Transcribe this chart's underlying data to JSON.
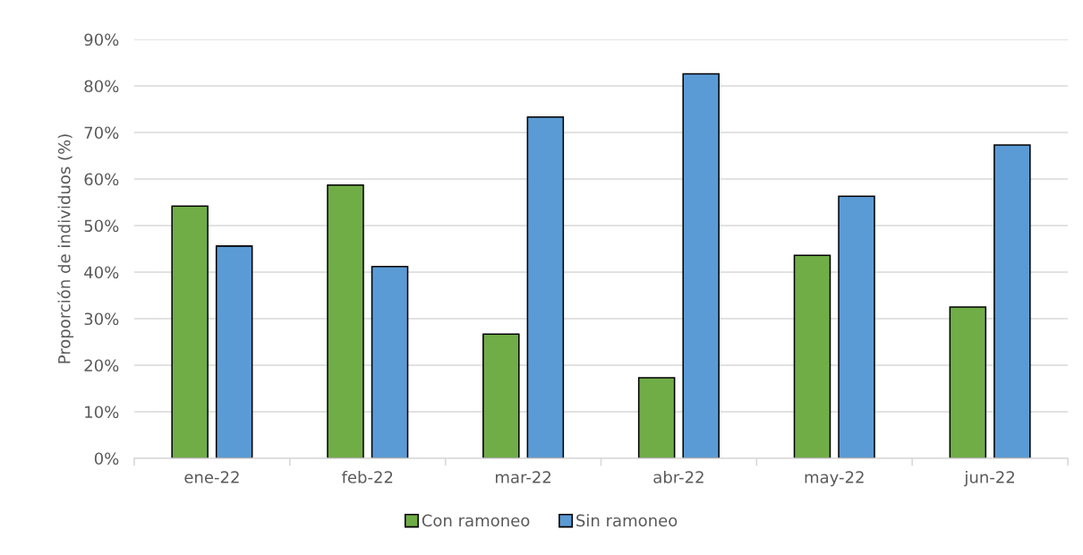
{
  "chart_data": {
    "type": "bar",
    "ylabel": "Proporción de individuos (%)",
    "categories": [
      "ene-22",
      "feb-22",
      "mar-22",
      "abr-22",
      "may-22",
      "jun-22"
    ],
    "series": [
      {
        "name": "Con ramoneo",
        "color": "#70ad47",
        "values": [
          54.2,
          58.7,
          26.7,
          17.3,
          43.6,
          32.5
        ]
      },
      {
        "name": "Sin ramoneo",
        "color": "#5b9bd5",
        "values": [
          45.6,
          41.2,
          73.3,
          82.6,
          56.3,
          67.3
        ]
      }
    ],
    "ylim": [
      0,
      90
    ],
    "yticks": [
      {
        "value": 0,
        "label": "0%"
      },
      {
        "value": 10,
        "label": "10%"
      },
      {
        "value": 20,
        "label": "20%"
      },
      {
        "value": 30,
        "label": "30%"
      },
      {
        "value": 40,
        "label": "40%"
      },
      {
        "value": 50,
        "label": "50%"
      },
      {
        "value": 60,
        "label": "60%"
      },
      {
        "value": 70,
        "label": "70%"
      },
      {
        "value": 80,
        "label": "80%"
      },
      {
        "value": 90,
        "label": "90%"
      }
    ],
    "grid": "y",
    "legend": "bottom"
  }
}
